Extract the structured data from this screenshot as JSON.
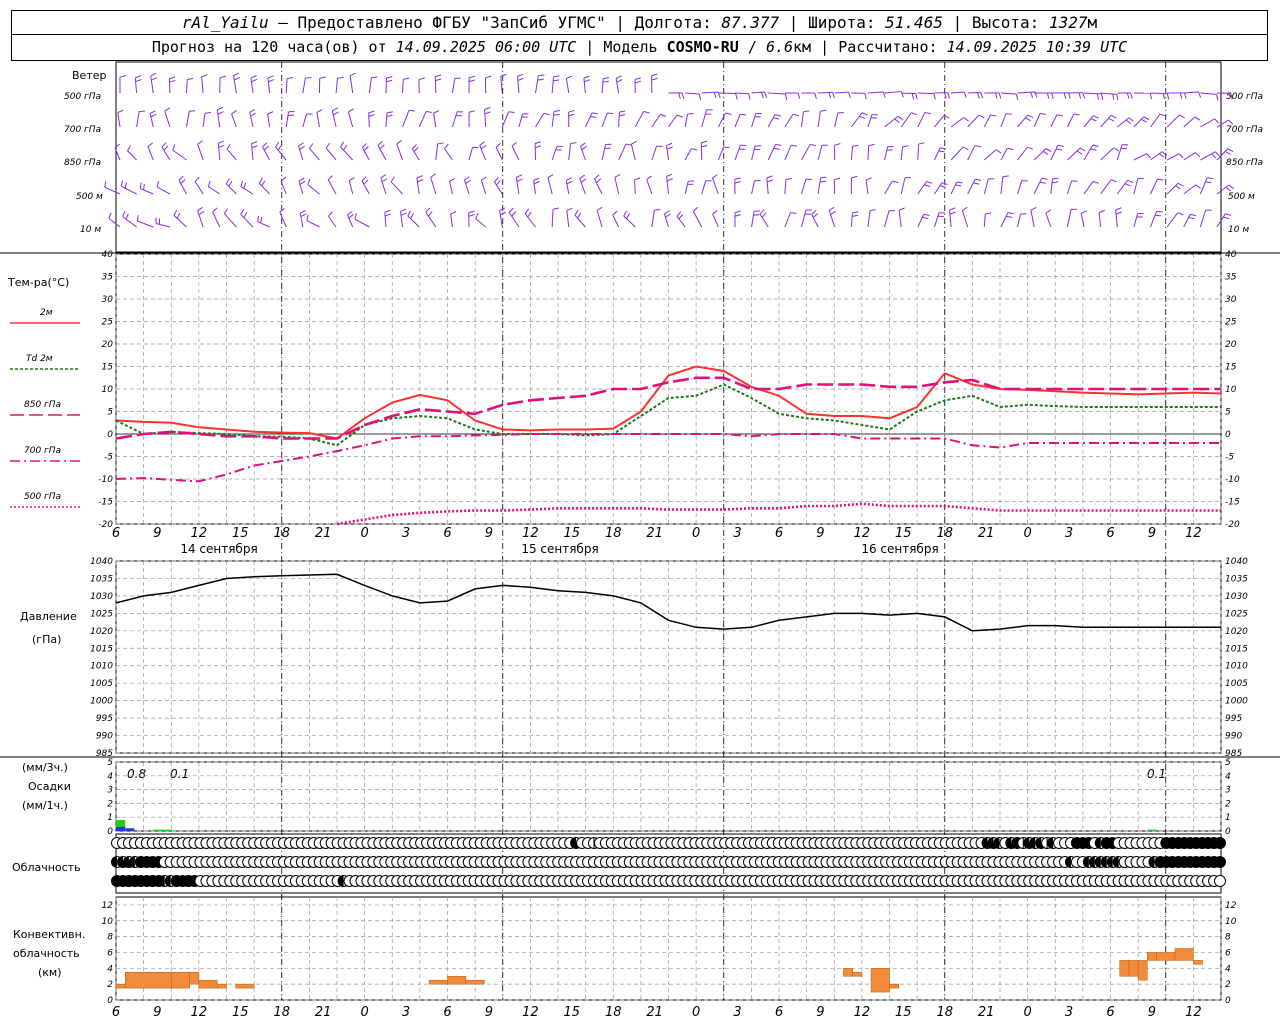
{
  "header": {
    "station": "rAl_Yailu",
    "dash": "—",
    "provider": "Предоставлено ФГБУ \"ЗапСиб УГМС\"",
    "lon_label": "Долгота:",
    "lon": "87.377",
    "lat_label": "Широта:",
    "lat": "51.465",
    "alt_label": "Высота:",
    "alt": "1327",
    "alt_unit": "м",
    "forecast_label": "Прогноз на 120 часа(ов) от",
    "forecast_start": "14.09.2025 06:00 UTC",
    "model_label": "Модель",
    "model": "COSMO-RU",
    "resolution": "6.6",
    "resolution_unit": "км",
    "calc_label": "Рассчитано:",
    "calc_time": "14.09.2025 10:39 UTC"
  },
  "wind_panel": {
    "title": "Ветер",
    "levels": [
      "500 гПа",
      "700 гПа",
      "850 гПа",
      "500 м",
      "10 м"
    ],
    "color": "#8a2be2"
  },
  "temp_panel": {
    "title": "Тем-ра(°С)",
    "legend": [
      {
        "label": "2м",
        "color": "#ff3030",
        "style": "solid"
      },
      {
        "label": "Td  2м",
        "color": "#1a7a1a",
        "style": "dotted"
      },
      {
        "label": "850 гПа",
        "color": "#e0107a",
        "style": "long-dash"
      },
      {
        "label": "700 гПа",
        "color": "#e0107a",
        "style": "dash-dot"
      },
      {
        "label": "500 гПа",
        "color": "#e0107a",
        "style": "dotted"
      }
    ],
    "yticks": [
      "40",
      "35",
      "30",
      "25",
      "20",
      "15",
      "10",
      "5",
      "0",
      "-5",
      "-10",
      "-15",
      "-20"
    ],
    "xticks": [
      "6",
      "9",
      "12",
      "15",
      "18",
      "21",
      "0",
      "3",
      "6",
      "9",
      "12",
      "15",
      "18",
      "21",
      "0",
      "3",
      "6",
      "9",
      "12",
      "15",
      "18",
      "21",
      "0",
      "3",
      "6",
      "9",
      "12"
    ],
    "days": [
      "14 сентября",
      "15 сентября",
      "16 сентября"
    ]
  },
  "pressure_panel": {
    "title": "Давление",
    "unit": "(гПа)",
    "yticks": [
      "1040",
      "1035",
      "1030",
      "1025",
      "1020",
      "1015",
      "1010",
      "1005",
      "1000",
      "995",
      "990",
      "985"
    ]
  },
  "precip_panel": {
    "unit3": "(мм/3ч.)",
    "title": "Осадки",
    "unit1": "(мм/1ч.)",
    "yticks": [
      "5",
      "4",
      "3",
      "2",
      "1",
      "0"
    ],
    "labels": [
      "0.8",
      "0.1",
      "0.1"
    ]
  },
  "cloud_panel": {
    "title": "Облачность",
    "rows": [
      "000000000000000000000000000000000000000000000000000000000000000000000000000003001000000000000000000000000000000000000000000000000000000000000000003320341323120004440244000000004444444444",
      "233244440000000000000000000000000000000000000000000000000000000000000000000000000000000000000000000000000000000000000000000000000000000000000000000000000000000020022222200000244444444444",
      "444444442244440000000000000000000000002000000000000000000000000000000000000000000000000000000000000000000000000000000000000000000000000000000000000000000000000000000000000000000000000000"
    ]
  },
  "conv_panel": {
    "title1": "Конвективн.",
    "title2": "облачность",
    "unit": "(км)",
    "yticks": [
      "12",
      "10",
      "8",
      "6",
      "4",
      "2",
      "0"
    ]
  },
  "chart_data": [
    {
      "type": "line",
      "title": "Тем-ра(°С)",
      "x_hours": [
        0,
        3,
        6,
        9,
        12,
        15,
        18,
        21,
        24,
        27,
        30,
        33,
        36,
        39,
        42,
        45,
        48,
        51,
        54,
        57,
        60,
        63,
        66,
        69,
        72,
        75,
        78,
        81,
        84,
        87,
        90,
        93,
        96,
        99,
        102,
        105,
        108,
        111,
        114,
        117,
        120
      ],
      "ylim": [
        -20,
        40
      ],
      "series": [
        {
          "name": "2м",
          "color": "#ff3030",
          "values": [
            3,
            2.7,
            2.5,
            1.5,
            1,
            0.5,
            0.3,
            0.2,
            -1,
            3.5,
            7,
            8.7,
            7.5,
            3,
            1,
            0.8,
            1,
            1,
            1.2,
            5,
            13,
            15,
            14,
            10.5,
            8.5,
            4.5,
            4,
            4,
            3.5,
            6,
            13.5,
            11,
            10,
            9.8,
            9.5,
            9.2,
            9,
            8.8,
            9,
            9.2,
            9
          ]
        },
        {
          "name": "Td  2м",
          "color": "#1a7a1a",
          "values": [
            3,
            0,
            0.5,
            0.2,
            0,
            -0.5,
            -0.6,
            -1,
            -2.5,
            2,
            3.5,
            4,
            3.5,
            1,
            0,
            0,
            0,
            -0.3,
            0,
            4,
            8,
            8.5,
            11,
            8,
            4.5,
            3.5,
            3,
            2,
            1,
            5,
            7.5,
            8.5,
            6,
            6.5,
            6.2,
            6,
            6,
            6,
            6,
            6,
            6
          ]
        },
        {
          "name": "850 гПа",
          "color": "#e0107a",
          "values": [
            -1,
            0,
            0.5,
            0,
            -0.5,
            -0.5,
            -1,
            -1,
            -1,
            2,
            4,
            5.5,
            5,
            4.5,
            6.5,
            7.5,
            8,
            8.5,
            10,
            10,
            11.5,
            12.5,
            12.5,
            10,
            10,
            11,
            11,
            11,
            10.5,
            10.5,
            11.5,
            12,
            10,
            10,
            10,
            10,
            10,
            10,
            10,
            10,
            10
          ]
        },
        {
          "name": "700 гПа",
          "color": "#e0107a",
          "values": [
            -10,
            -9.8,
            -10.2,
            -10.5,
            -9,
            -7,
            -6,
            -5,
            -3.8,
            -2.5,
            -1,
            -0.5,
            -0.5,
            -0.3,
            -0.2,
            0,
            0,
            0,
            0,
            0,
            0,
            0,
            0,
            -0.5,
            0,
            0,
            0,
            -1,
            -1,
            -1,
            -1,
            -2.5,
            -3,
            -2,
            -2,
            -2,
            -2,
            -2,
            -2,
            -2,
            -2
          ]
        },
        {
          "name": "500 гПа",
          "color": "#e0107a",
          "values": [
            null,
            null,
            null,
            null,
            null,
            null,
            null,
            null,
            -20,
            -19,
            -18,
            -17.5,
            -17.2,
            -17,
            -17,
            -16.8,
            -16.5,
            -16.5,
            -16.5,
            -16.5,
            -16.8,
            -16.8,
            -16.8,
            -16.5,
            -16.5,
            -16,
            -16,
            -15.5,
            -16,
            -16,
            -16,
            -16.5,
            -17,
            -17,
            -17,
            -17,
            -17,
            -17,
            -17,
            -17,
            -17
          ]
        }
      ]
    },
    {
      "type": "line",
      "title": "Давление",
      "x_hours": [
        0,
        3,
        6,
        9,
        12,
        15,
        18,
        21,
        24,
        27,
        30,
        33,
        36,
        39,
        42,
        45,
        48,
        51,
        54,
        57,
        60,
        63,
        66,
        69,
        72,
        75,
        78,
        81,
        84,
        87,
        90,
        93,
        96,
        99,
        102,
        105,
        108,
        111,
        114,
        117,
        120
      ],
      "ylim": [
        985,
        1040
      ],
      "series": [
        {
          "name": "Давление",
          "color": "#000000",
          "values": [
            1028,
            1030,
            1031,
            1033,
            1035,
            1035.5,
            1035.8,
            1036,
            1036.2,
            1033,
            1030,
            1028,
            1028.5,
            1032,
            1033,
            1032.5,
            1031.5,
            1031,
            1030,
            1028,
            1023,
            1021,
            1020.5,
            1021,
            1023,
            1024,
            1025,
            1025,
            1024.5,
            1025,
            1024,
            1020,
            1020.5,
            1021.5,
            1021.5,
            1021,
            1021,
            1021,
            1021,
            1021,
            1021
          ]
        }
      ]
    },
    {
      "type": "bar",
      "title": "Осадки",
      "ylim": [
        0,
        5
      ],
      "series": [
        {
          "name": "мм/3ч.",
          "color": "#22cc22",
          "bars": [
            {
              "from": 0,
              "to": 1,
              "value": 0.8
            },
            {
              "from": 4,
              "to": 6,
              "value": 0.1
            },
            {
              "from": 112,
              "to": 113,
              "value": 0.1
            }
          ]
        },
        {
          "name": "мм/1ч.",
          "color": "#1f3fcf",
          "bars": [
            {
              "from": 0,
              "to": 1,
              "value": 0.3
            },
            {
              "from": 1,
              "to": 2,
              "value": 0.2
            }
          ]
        }
      ]
    },
    {
      "type": "bar",
      "title": "Конвективн. облачность",
      "ylim": [
        0,
        13
      ],
      "series": [
        {
          "name": "облачность",
          "color": "#ef8b3a",
          "bars": [
            {
              "from": 0,
              "to": 1,
              "bottom": 1.5,
              "top": 2
            },
            {
              "from": 1,
              "to": 6,
              "bottom": 1.5,
              "top": 3.5
            },
            {
              "from": 6,
              "to": 8,
              "bottom": 1.5,
              "top": 3.5
            },
            {
              "from": 8,
              "to": 9,
              "bottom": 2,
              "top": 3.5
            },
            {
              "from": 9,
              "to": 11,
              "bottom": 1.5,
              "top": 2.5
            },
            {
              "from": 11,
              "to": 12,
              "bottom": 1.5,
              "top": 2
            },
            {
              "from": 13,
              "to": 15,
              "bottom": 1.5,
              "top": 2
            },
            {
              "from": 34,
              "to": 36,
              "bottom": 2,
              "top": 2.5
            },
            {
              "from": 36,
              "to": 38,
              "bottom": 2,
              "top": 3
            },
            {
              "from": 38,
              "to": 40,
              "bottom": 2,
              "top": 2.5
            },
            {
              "from": 79,
              "to": 80,
              "bottom": 3,
              "top": 4
            },
            {
              "from": 80,
              "to": 81,
              "bottom": 3,
              "top": 3.5
            },
            {
              "from": 82,
              "to": 84,
              "bottom": 1,
              "top": 4
            },
            {
              "from": 84,
              "to": 85,
              "bottom": 1.5,
              "top": 2
            },
            {
              "from": 109,
              "to": 110,
              "bottom": 3,
              "top": 5
            },
            {
              "from": 110,
              "to": 111,
              "bottom": 3,
              "top": 5
            },
            {
              "from": 111,
              "to": 112,
              "bottom": 2.5,
              "top": 5
            },
            {
              "from": 112,
              "to": 113,
              "bottom": 5,
              "top": 6
            },
            {
              "from": 113,
              "to": 115,
              "bottom": 5,
              "top": 6
            },
            {
              "from": 115,
              "to": 117,
              "bottom": 5,
              "top": 6.5
            },
            {
              "from": 117,
              "to": 118,
              "bottom": 4.5,
              "top": 5
            }
          ]
        }
      ]
    }
  ]
}
